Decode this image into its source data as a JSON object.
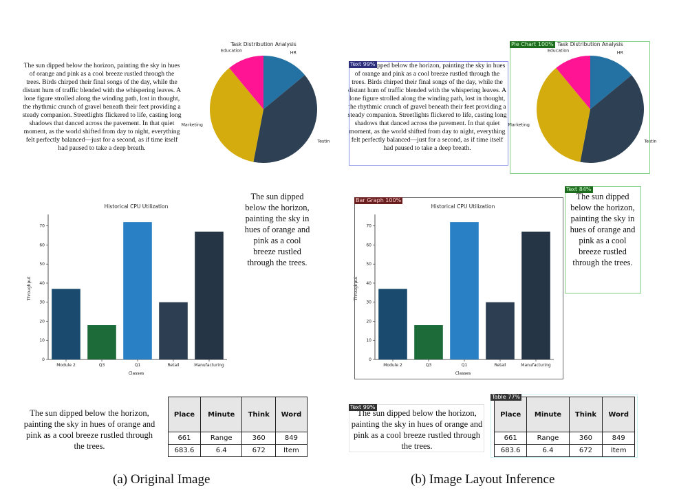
{
  "paragraph_long": "The sun dipped below the horizon, painting the sky in hues of orange and pink as a cool breeze rustled through the trees. Birds chirped their final songs of the day, while the distant hum of traffic blended with the whispering leaves. A lone figure strolled along the winding path, lost in thought, the rhythmic crunch of gravel beneath their feet providing a steady companion. Streetlights flickered to life, casting long shadows that danced across the pavement. In that quiet moment, as the world shifted from day to night, everything felt perfectly balanced—just for a second, as if time itself had paused to take a deep breath.",
  "paragraph_short": "The sun dipped below the horizon, painting the sky in hues of orange and pink as a cool breeze rustled through the trees.",
  "chart_data": [
    {
      "type": "pie",
      "title": "Task Distribution Analysis",
      "labels": [
        "HR",
        "Testing",
        "Marketing",
        "Education"
      ],
      "values": [
        14,
        39,
        36,
        11
      ],
      "colors": [
        "#2471a3",
        "#2e4053",
        "#d4ac0d",
        "#ff1493"
      ]
    },
    {
      "type": "bar",
      "title": "Historical CPU Utilization",
      "xlabel": "Classes",
      "ylabel": "Throughput",
      "categories": [
        "Module 2",
        "Q3",
        "Q1",
        "Retail",
        "Manufacturing"
      ],
      "values": [
        37,
        18,
        72,
        30,
        67
      ],
      "colors": [
        "#1a4a6e",
        "#1e6b3a",
        "#2a80c4",
        "#2d3e52",
        "#263546"
      ],
      "ylim": [
        0,
        76
      ],
      "yticks": [
        0,
        10,
        20,
        30,
        40,
        50,
        60,
        70
      ]
    }
  ],
  "table": {
    "headers": [
      "Place",
      "Minute",
      "Think",
      "Word"
    ],
    "rows": [
      [
        "661",
        "Range",
        "360",
        "849"
      ],
      [
        "683.6",
        "6.4",
        "672",
        "Item"
      ]
    ]
  },
  "detections": {
    "pie": "Pie Chart 100%",
    "text_long": "Text 99%",
    "bar": "Bar Graph 100%",
    "text_col": "Text 84%",
    "text_short": "Text 99%",
    "table": "Table 77%"
  },
  "captions": {
    "left": "(a) Original Image",
    "right": "(b) Image Layout Inference"
  }
}
